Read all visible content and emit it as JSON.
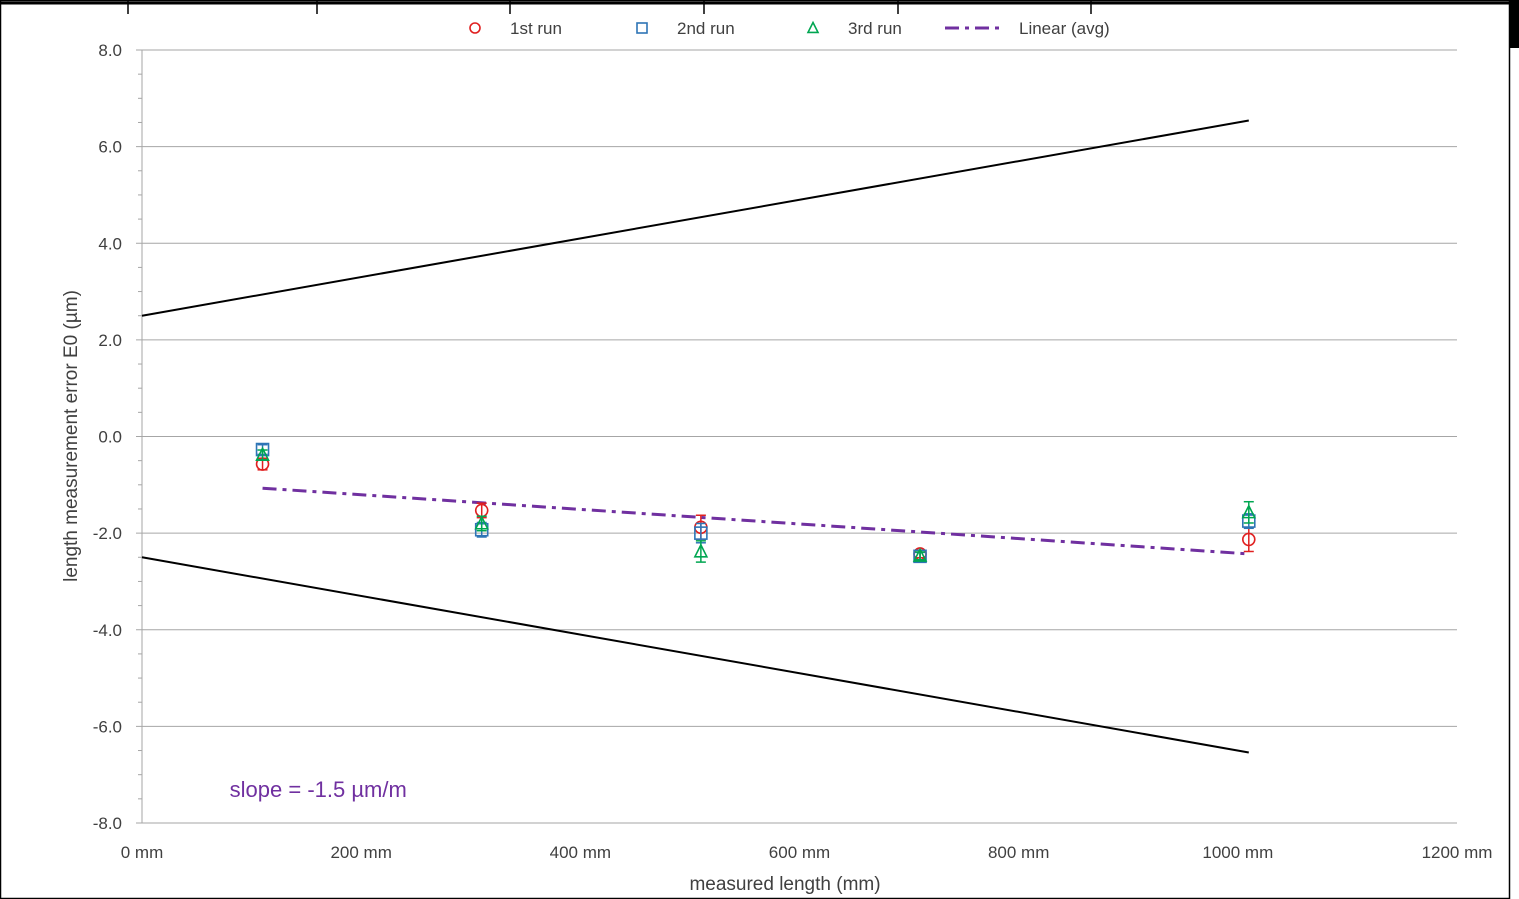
{
  "chart_data": {
    "type": "scatter",
    "xlabel": "measured length (mm)",
    "ylabel": "length measurement error E0 (µm)",
    "xlim": [
      0,
      1200
    ],
    "ylim": [
      -8,
      8
    ],
    "x_ticks": [
      {
        "value": 0,
        "label": "0 mm"
      },
      {
        "value": 200,
        "label": "200 mm"
      },
      {
        "value": 400,
        "label": "400 mm"
      },
      {
        "value": 600,
        "label": "600 mm"
      },
      {
        "value": 800,
        "label": "800 mm"
      },
      {
        "value": 1000,
        "label": "1000 mm"
      },
      {
        "value": 1200,
        "label": "1200 mm"
      }
    ],
    "y_ticks": [
      {
        "value": 8,
        "label": "8.0"
      },
      {
        "value": 6,
        "label": "6.0"
      },
      {
        "value": 4,
        "label": "4.0"
      },
      {
        "value": 2,
        "label": "2.0"
      },
      {
        "value": 0,
        "label": "0.0"
      },
      {
        "value": -2,
        "label": "-2.0"
      },
      {
        "value": -4,
        "label": "-4.0"
      },
      {
        "value": -6,
        "label": "-6.0"
      },
      {
        "value": -8,
        "label": "-8.0"
      }
    ],
    "grid": "horizontal major",
    "legend_position": "top",
    "series": [
      {
        "name": "1st run",
        "marker": "circle",
        "color": "#e02020",
        "points": [
          {
            "x": 110,
            "y": -0.57,
            "err": 0.12
          },
          {
            "x": 310,
            "y": -1.53,
            "err": 0.15
          },
          {
            "x": 510,
            "y": -1.88,
            "err": 0.25
          },
          {
            "x": 710,
            "y": -2.43,
            "err": 0.08
          },
          {
            "x": 1010,
            "y": -2.13,
            "err": 0.25
          }
        ]
      },
      {
        "name": "2nd run",
        "marker": "square",
        "color": "#2e75b6",
        "points": [
          {
            "x": 110,
            "y": -0.27,
            "err": 0.1
          },
          {
            "x": 310,
            "y": -1.93,
            "err": 0.15
          },
          {
            "x": 510,
            "y": -2.0,
            "err": 0.2
          },
          {
            "x": 710,
            "y": -2.48,
            "err": 0.08
          },
          {
            "x": 1010,
            "y": -1.75,
            "err": 0.15
          }
        ]
      },
      {
        "name": "3rd run",
        "marker": "triangle",
        "color": "#00a651",
        "points": [
          {
            "x": 110,
            "y": -0.38,
            "err": 0.1
          },
          {
            "x": 310,
            "y": -1.8,
            "err": 0.15
          },
          {
            "x": 510,
            "y": -2.38,
            "err": 0.22
          },
          {
            "x": 710,
            "y": -2.47,
            "err": 0.08
          },
          {
            "x": 1010,
            "y": -1.57,
            "err": 0.22
          }
        ]
      }
    ],
    "trendline": {
      "name": "Linear (avg)",
      "style": "dash-dot",
      "color": "#7030a0",
      "points": [
        [
          110,
          -1.07
        ],
        [
          1010,
          -2.43
        ]
      ]
    },
    "limit_lines": {
      "color": "#000000",
      "upper": [
        [
          0,
          2.5
        ],
        [
          1010,
          6.54
        ]
      ],
      "lower": [
        [
          0,
          -2.5
        ],
        [
          1010,
          -6.54
        ]
      ]
    },
    "annotation": {
      "text": "slope =  -1.5 µm/m",
      "color": "#7030a0",
      "x": 80,
      "y": -7.3
    }
  }
}
